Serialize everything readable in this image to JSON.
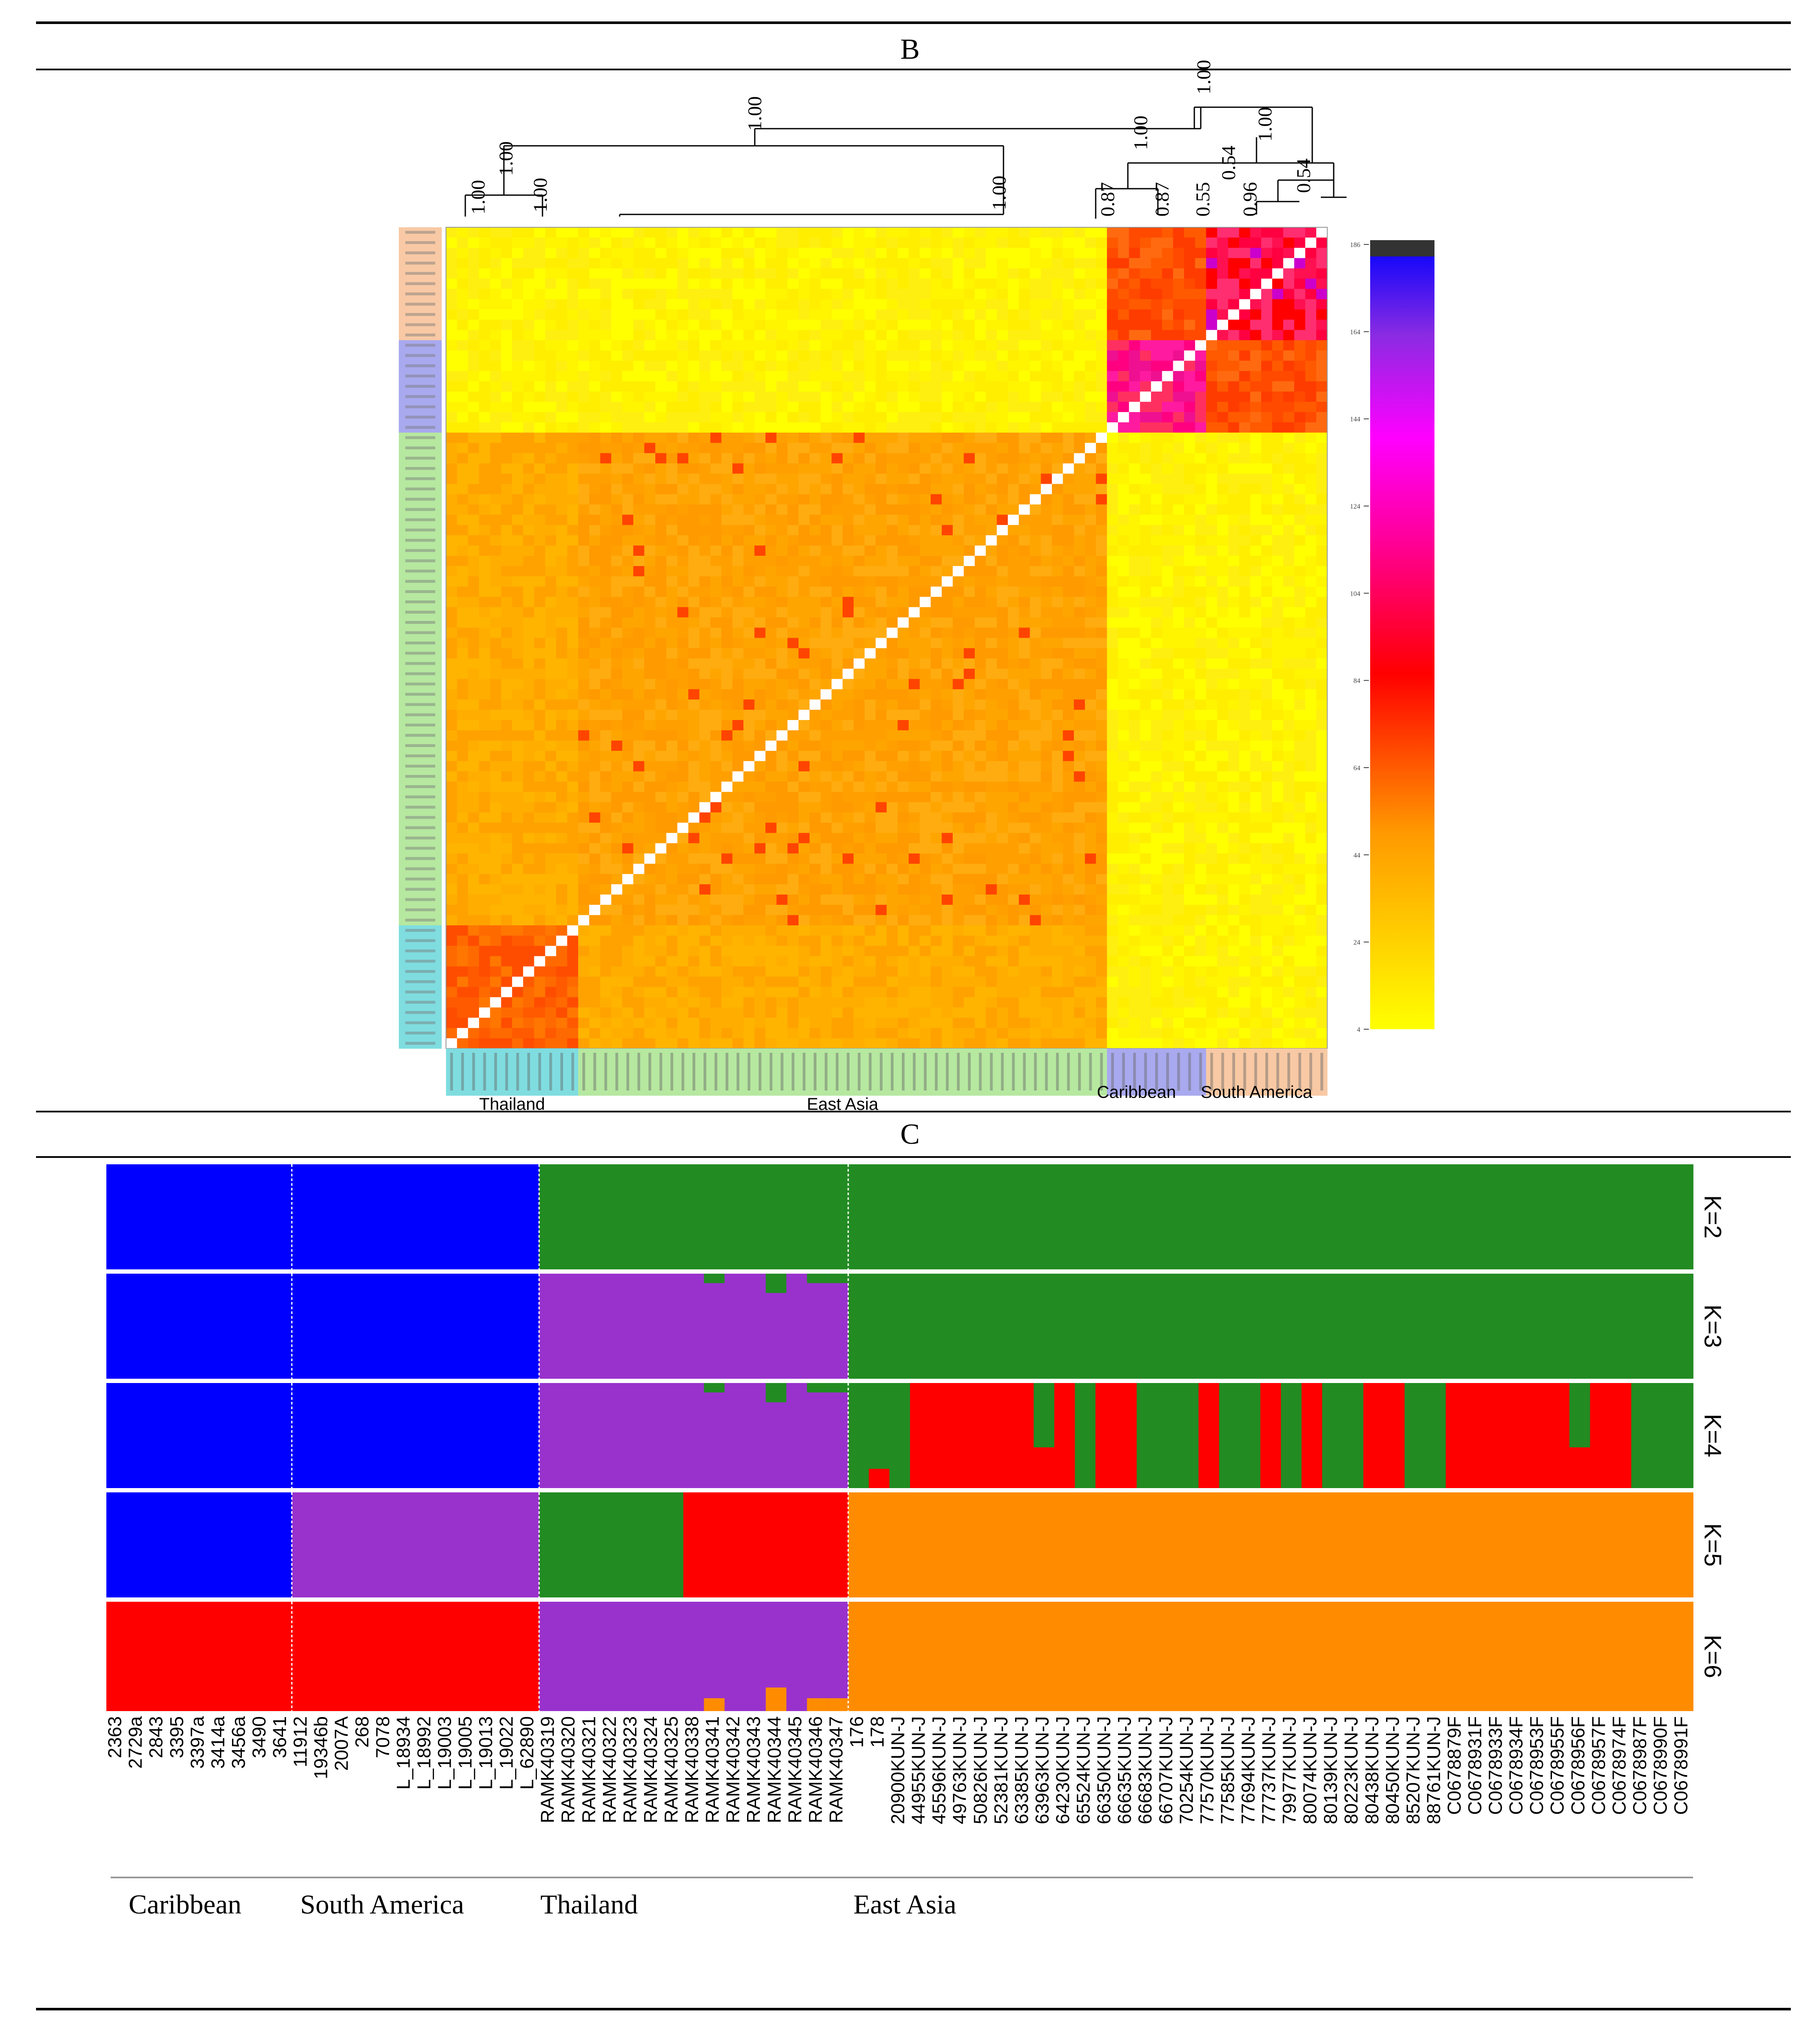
{
  "panels": {
    "b_label": "B",
    "c_label": "C"
  },
  "heatmap": {
    "n_samples": 80,
    "tree_values": [
      "1.00",
      "1.00",
      "1.00",
      "1.00",
      "1.00",
      "1.00",
      "1.00",
      "0.87",
      "0.87",
      "0.55",
      "0.54",
      "0.96",
      "1.00",
      "0.54"
    ],
    "groups": [
      {
        "name": "Thailand",
        "count": 12,
        "color": "#7fdde0"
      },
      {
        "name": "East Asia",
        "count": 48,
        "color": "#b6e8a0"
      },
      {
        "name": "Caribbean",
        "count": 9,
        "color": "#a9a9ef"
      },
      {
        "name": "South America",
        "count": 11,
        "color": "#f8c9a4"
      }
    ],
    "colorbar_ticks": [
      "186",
      "164",
      "144",
      "124",
      "104",
      "84",
      "64",
      "44",
      "24",
      "4"
    ],
    "colors": {
      "low": "#ffff00",
      "high": "#ff00ff",
      "diag": "#ffffff"
    }
  },
  "structure": {
    "k_labels": [
      "K=2",
      "K=3",
      "K=4",
      "K=5",
      "K=6"
    ],
    "colors": {
      "blue": "#0000ff",
      "green": "#228b22",
      "purple": "#9932cc",
      "red": "#ff0000",
      "orange": "#ff8c00"
    },
    "sample_ids": [
      "2363",
      "2729a",
      "2843",
      "3395",
      "3397a",
      "3414a",
      "3456a",
      "3490",
      "3641",
      "11912",
      "19346b",
      "2007A",
      "268",
      "7078",
      "L_18934",
      "L_18992",
      "L_19003",
      "L_19005",
      "L_19013",
      "L_19022",
      "L_62890",
      "RAMK40319",
      "RAMK40320",
      "RAMK40321",
      "RAMK40322",
      "RAMK40323",
      "RAMK40324",
      "RAMK40325",
      "RAMK40338",
      "RAMK40341",
      "RAMK40342",
      "RAMK40343",
      "RAMK40344",
      "RAMK40345",
      "RAMK40346",
      "RAMK40347",
      "176",
      "178",
      "20900KUN-J",
      "44955KUN-J",
      "45596KUN-J",
      "49763KUN-J",
      "50826KUN-J",
      "52381KUN-J",
      "63385KUN-J",
      "63963KUN-J",
      "64230KUN-J",
      "65524KUN-J",
      "66350KUN-J",
      "66635KUN-J",
      "66683KUN-J",
      "66707KUN-J",
      "70254KUN-J",
      "77570KUN-J",
      "77585KUN-J",
      "77694KUN-J",
      "77737KUN-J",
      "79977KUN-J",
      "80074KUN-J",
      "80139KUN-J",
      "80223KUN-J",
      "80438KUN-J",
      "80450KUN-J",
      "85207KUN-J",
      "88761KUN-J",
      "C0678879F",
      "C0678931F",
      "C0678933F",
      "C0678934F",
      "C0678953F",
      "C0678955F",
      "C0678956F",
      "C0678957F",
      "C0678974F",
      "C0678987F",
      "C0678990F",
      "C0678991F"
    ],
    "region_labels": [
      "Caribbean",
      "South America",
      "Thailand",
      "East Asia"
    ]
  }
}
